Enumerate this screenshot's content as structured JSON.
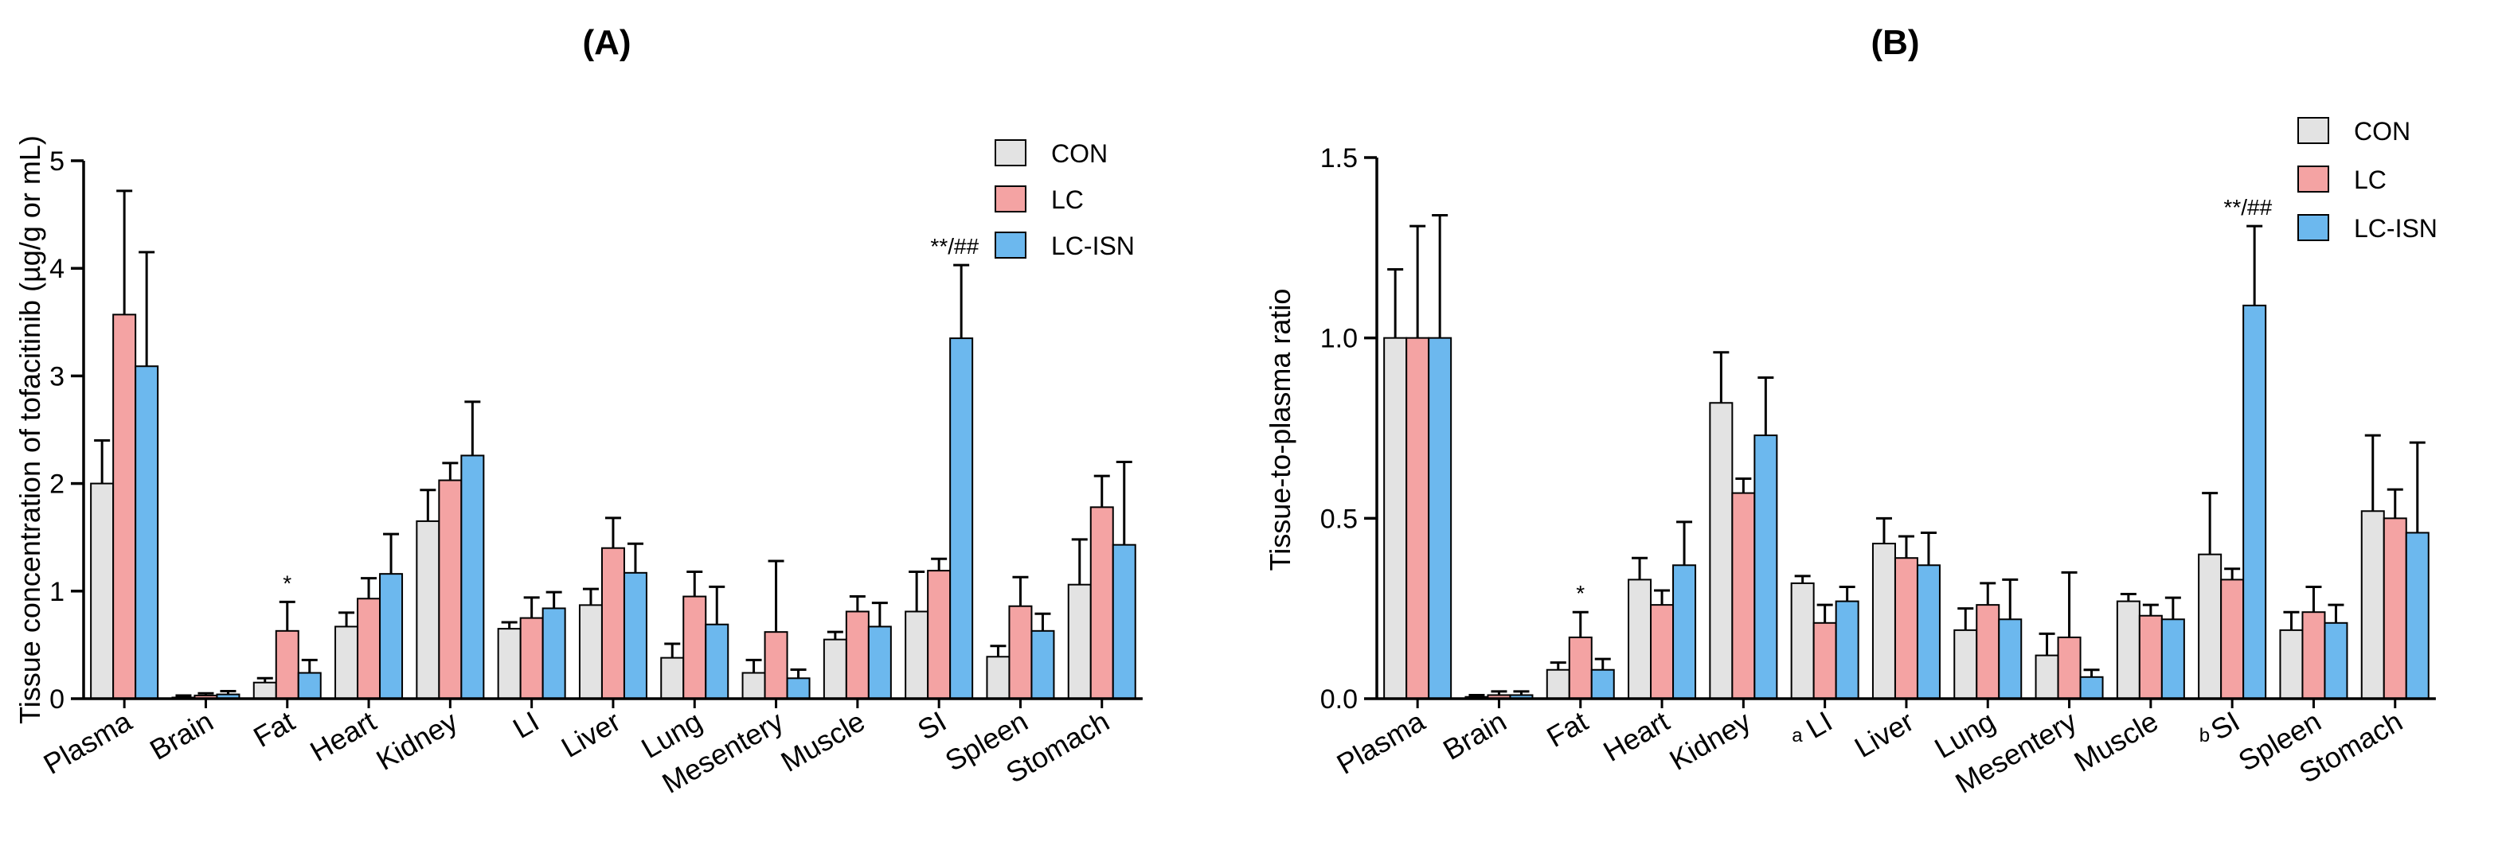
{
  "chart_data": [
    {
      "id": "A",
      "type": "bar",
      "title": "(A)",
      "xlabel": "",
      "ylabel": "Tissue concentration of tofacitinib (µg/g or mL)",
      "ylim": [
        0,
        5
      ],
      "yticks": [
        0,
        1,
        2,
        3,
        4,
        5
      ],
      "ytick_labels": [
        "0",
        "1",
        "2",
        "3",
        "4",
        "5"
      ],
      "categories": [
        "Plasma",
        "Brain",
        "Fat",
        "Heart",
        "Kidney",
        "LI",
        "Liver",
        "Lung",
        "Mesentery",
        "Muscle",
        "SI",
        "Spleen",
        "Stomach"
      ],
      "category_prefixes": [
        "",
        "",
        "",
        "",
        "",
        "",
        "",
        "",
        "",
        "",
        "",
        "",
        ""
      ],
      "series": [
        {
          "name": "CON",
          "color": "#e3e3e3",
          "values": [
            2.0,
            0.01,
            0.15,
            0.67,
            1.65,
            0.65,
            0.87,
            0.38,
            0.24,
            0.55,
            0.81,
            0.39,
            1.06
          ],
          "errors": [
            0.4,
            0.02,
            0.04,
            0.13,
            0.29,
            0.06,
            0.15,
            0.13,
            0.12,
            0.07,
            0.37,
            0.1,
            0.42
          ]
        },
        {
          "name": "LC",
          "color": "#f4a3a3",
          "values": [
            3.57,
            0.03,
            0.63,
            0.93,
            2.03,
            0.75,
            1.4,
            0.95,
            0.62,
            0.81,
            1.19,
            0.86,
            1.78
          ],
          "errors": [
            1.15,
            0.02,
            0.27,
            0.19,
            0.16,
            0.19,
            0.28,
            0.23,
            0.66,
            0.14,
            0.11,
            0.27,
            0.29
          ]
        },
        {
          "name": "LC-ISN",
          "color": "#6cb8ee",
          "values": [
            3.09,
            0.04,
            0.24,
            1.16,
            2.26,
            0.84,
            1.17,
            0.69,
            0.19,
            0.67,
            3.35,
            0.63,
            1.43
          ],
          "errors": [
            1.06,
            0.03,
            0.12,
            0.37,
            0.5,
            0.15,
            0.27,
            0.35,
            0.08,
            0.22,
            0.68,
            0.16,
            0.77
          ]
        }
      ],
      "annotations": [
        {
          "category": "Fat",
          "series": "LC",
          "text": "*"
        },
        {
          "category": "SI",
          "series": "LC-ISN",
          "text": "**/##"
        }
      ],
      "legend": {
        "position": "top-right",
        "entries": [
          "CON",
          "LC",
          "LC-ISN"
        ]
      }
    },
    {
      "id": "B",
      "type": "bar",
      "title": "(B)",
      "xlabel": "",
      "ylabel": "Tissue-to-plasma ratio",
      "ylim": [
        0,
        1.5
      ],
      "yticks": [
        0,
        0.5,
        1.0,
        1.5
      ],
      "ytick_labels": [
        "0.0",
        "0.5",
        "1.0",
        "1.5"
      ],
      "categories": [
        "Plasma",
        "Brain",
        "Fat",
        "Heart",
        "Kidney",
        "LI",
        "Liver",
        "Lung",
        "Mesentery",
        "Muscle",
        "SI",
        "Spleen",
        "Stomach"
      ],
      "category_prefixes": [
        "",
        "",
        "",
        "",
        "",
        "a",
        "",
        "",
        "",
        "",
        "b",
        "",
        ""
      ],
      "series": [
        {
          "name": "CON",
          "color": "#e3e3e3",
          "values": [
            1.0,
            0.005,
            0.08,
            0.33,
            0.82,
            0.32,
            0.43,
            0.19,
            0.12,
            0.27,
            0.4,
            0.19,
            0.52
          ],
          "errors": [
            0.19,
            0.005,
            0.02,
            0.06,
            0.14,
            0.02,
            0.07,
            0.06,
            0.06,
            0.02,
            0.17,
            0.05,
            0.21
          ]
        },
        {
          "name": "LC",
          "color": "#f4a3a3",
          "values": [
            1.0,
            0.01,
            0.17,
            0.26,
            0.57,
            0.21,
            0.39,
            0.26,
            0.17,
            0.23,
            0.33,
            0.24,
            0.5
          ],
          "errors": [
            0.31,
            0.01,
            0.07,
            0.04,
            0.04,
            0.05,
            0.06,
            0.06,
            0.18,
            0.03,
            0.03,
            0.07,
            0.08
          ]
        },
        {
          "name": "LC-ISN",
          "color": "#6cb8ee",
          "values": [
            1.0,
            0.01,
            0.08,
            0.37,
            0.73,
            0.27,
            0.37,
            0.22,
            0.06,
            0.22,
            1.09,
            0.21,
            0.46
          ],
          "errors": [
            0.34,
            0.01,
            0.03,
            0.12,
            0.16,
            0.04,
            0.09,
            0.11,
            0.02,
            0.06,
            0.22,
            0.05,
            0.25
          ]
        }
      ],
      "annotations": [
        {
          "category": "Fat",
          "series": "LC",
          "text": "*"
        },
        {
          "category": "SI",
          "series": "LC-ISN",
          "text": "**/##"
        }
      ],
      "legend": {
        "position": "top-right",
        "entries": [
          "CON",
          "LC",
          "LC-ISN"
        ]
      }
    }
  ]
}
